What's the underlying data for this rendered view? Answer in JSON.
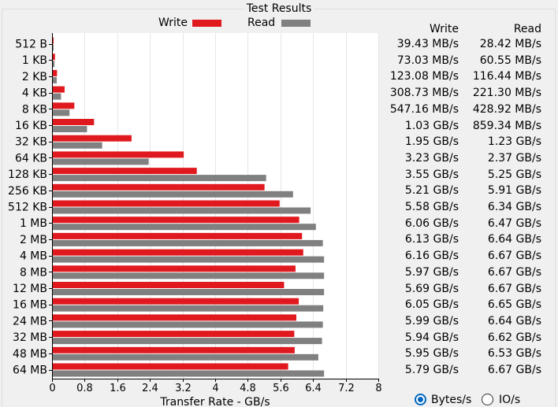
{
  "panel": {
    "title": "Test Results"
  },
  "legend": {
    "write_label": "Write",
    "read_label": "Read",
    "write_color": "#e0191f",
    "read_color": "#808080"
  },
  "results": {
    "write_header": "Write",
    "read_header": "Read",
    "rows": [
      {
        "write": "39.43 MB/s",
        "read": "28.42 MB/s"
      },
      {
        "write": "73.03 MB/s",
        "read": "60.55 MB/s"
      },
      {
        "write": "123.08 MB/s",
        "read": "116.44 MB/s"
      },
      {
        "write": "308.73 MB/s",
        "read": "221.30 MB/s"
      },
      {
        "write": "547.16 MB/s",
        "read": "428.92 MB/s"
      },
      {
        "write": "1.03 GB/s",
        "read": "859.34 MB/s"
      },
      {
        "write": "1.95 GB/s",
        "read": "1.23 GB/s"
      },
      {
        "write": "3.23 GB/s",
        "read": "2.37 GB/s"
      },
      {
        "write": "3.55 GB/s",
        "read": "5.25 GB/s"
      },
      {
        "write": "5.21 GB/s",
        "read": "5.91 GB/s"
      },
      {
        "write": "5.58 GB/s",
        "read": "6.34 GB/s"
      },
      {
        "write": "6.06 GB/s",
        "read": "6.47 GB/s"
      },
      {
        "write": "6.13 GB/s",
        "read": "6.64 GB/s"
      },
      {
        "write": "6.16 GB/s",
        "read": "6.67 GB/s"
      },
      {
        "write": "5.97 GB/s",
        "read": "6.67 GB/s"
      },
      {
        "write": "5.69 GB/s",
        "read": "6.67 GB/s"
      },
      {
        "write": "6.05 GB/s",
        "read": "6.65 GB/s"
      },
      {
        "write": "5.99 GB/s",
        "read": "6.64 GB/s"
      },
      {
        "write": "5.94 GB/s",
        "read": "6.62 GB/s"
      },
      {
        "write": "5.95 GB/s",
        "read": "6.53 GB/s"
      },
      {
        "write": "5.79 GB/s",
        "read": "6.67 GB/s"
      }
    ]
  },
  "display_mode": {
    "options": [
      {
        "label": "Bytes/s",
        "selected": true
      },
      {
        "label": "IO/s",
        "selected": false
      }
    ]
  },
  "chart_data": {
    "type": "bar",
    "orientation": "horizontal",
    "categories": [
      "512 B",
      "1 KB",
      "2 KB",
      "4 KB",
      "8 KB",
      "16 KB",
      "32 KB",
      "64 KB",
      "128 KB",
      "256 KB",
      "512 KB",
      "1 MB",
      "2 MB",
      "4 MB",
      "8 MB",
      "12 MB",
      "16 MB",
      "24 MB",
      "32 MB",
      "48 MB",
      "64 MB"
    ],
    "series": [
      {
        "name": "Write",
        "color": "#e0191f",
        "values": [
          0.03943,
          0.07303,
          0.12308,
          0.30873,
          0.54716,
          1.03,
          1.95,
          3.23,
          3.55,
          5.21,
          5.58,
          6.06,
          6.13,
          6.16,
          5.97,
          5.69,
          6.05,
          5.99,
          5.94,
          5.95,
          5.79
        ]
      },
      {
        "name": "Read",
        "color": "#808080",
        "values": [
          0.02842,
          0.06055,
          0.11644,
          0.2213,
          0.42892,
          0.85934,
          1.23,
          2.37,
          5.25,
          5.91,
          6.34,
          6.47,
          6.64,
          6.67,
          6.67,
          6.67,
          6.65,
          6.64,
          6.62,
          6.53,
          6.67
        ]
      }
    ],
    "xlabel": "Transfer Rate - GB/s",
    "ylabel": "",
    "xlim": [
      0,
      8
    ],
    "xticks": [
      "0",
      "0.8",
      "1.6",
      "2.4",
      "3.2",
      "4",
      "4.8",
      "5.6",
      "6.4",
      "7.2",
      "8"
    ],
    "grid": "vertical",
    "legend": "top"
  }
}
